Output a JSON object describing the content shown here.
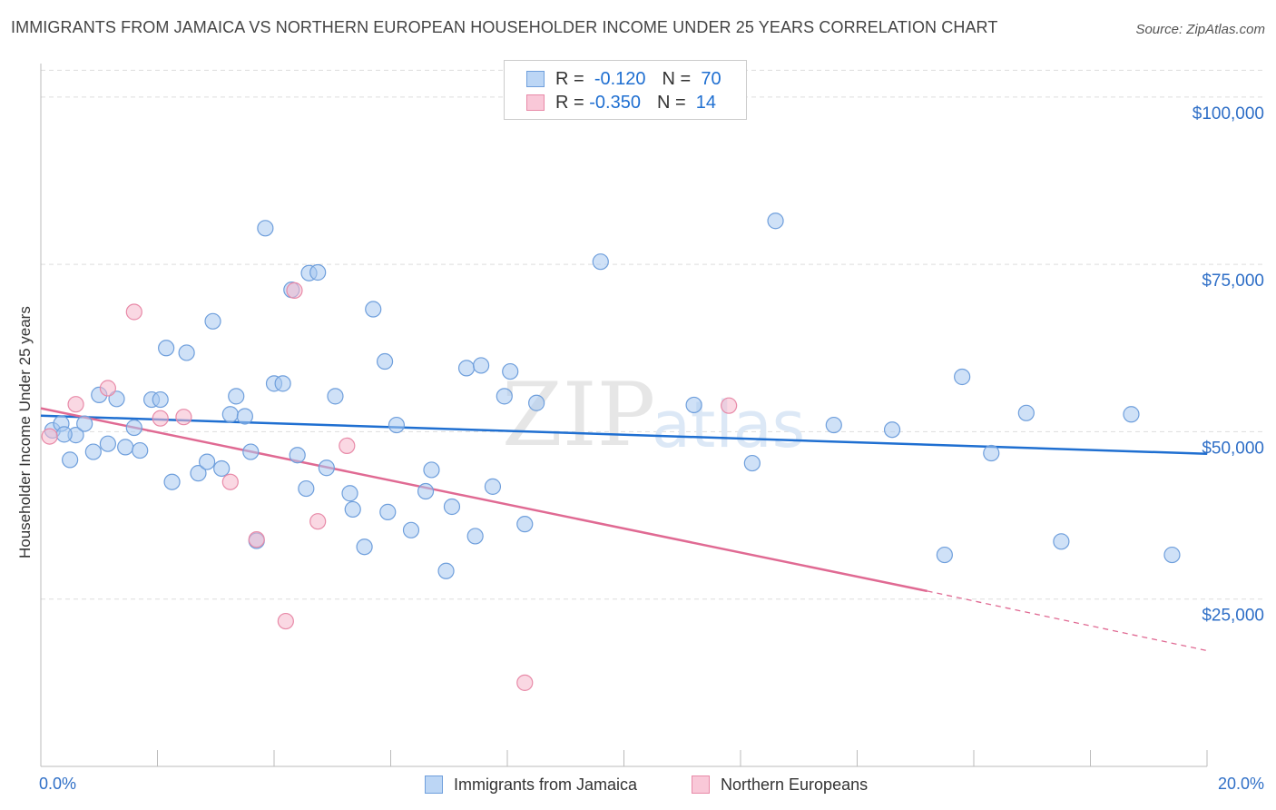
{
  "title": "IMMIGRANTS FROM JAMAICA VS NORTHERN EUROPEAN HOUSEHOLDER INCOME UNDER 25 YEARS CORRELATION CHART",
  "source": "Source: ZipAtlas.com",
  "watermark": {
    "zip": "ZIP",
    "atlas": "atlas"
  },
  "legend": {
    "rows": [
      {
        "r_label": "R =",
        "r_value": "-0.120",
        "n_label": "N =",
        "n_value": "70"
      },
      {
        "r_label": "R =",
        "r_value": "-0.350",
        "n_label": "N =",
        "n_value": "14"
      }
    ]
  },
  "colors": {
    "blue_fill": "#a8c8f0",
    "blue_stroke": "#6f9fdc",
    "blue_line": "#1f6fd1",
    "pink_fill": "#f6b8cc",
    "pink_stroke": "#e88aa8",
    "pink_line": "#e06a93",
    "axis_text": "#2f6fc7",
    "grid": "#dddddd"
  },
  "chart_data": {
    "type": "scatter",
    "title": "IMMIGRANTS FROM JAMAICA VS NORTHERN EUROPEAN HOUSEHOLDER INCOME UNDER 25 YEARS CORRELATION CHART",
    "xlabel": "",
    "ylabel": "Householder Income Under 25 years",
    "xlim": [
      0,
      20
    ],
    "ylim": [
      0,
      105000
    ],
    "x_tick_labels": [
      "0.0%",
      "20.0%"
    ],
    "y_ticks": [
      25000,
      50000,
      75000,
      100000
    ],
    "y_tick_labels": [
      "$25,000",
      "$50,000",
      "$75,000",
      "$100,000"
    ],
    "grid": true,
    "legend_position": "bottom",
    "series": [
      {
        "name": "Immigrants from Jamaica",
        "color": "#a8c8f0",
        "trend": {
          "x": [
            0,
            20
          ],
          "y": [
            52400,
            46700
          ]
        },
        "points": [
          [
            0.2,
            50200
          ],
          [
            0.35,
            51200
          ],
          [
            0.5,
            45800
          ],
          [
            0.6,
            49500
          ],
          [
            0.75,
            51200
          ],
          [
            0.9,
            47000
          ],
          [
            1.0,
            55500
          ],
          [
            1.15,
            48200
          ],
          [
            1.3,
            54900
          ],
          [
            1.45,
            47700
          ],
          [
            1.6,
            50600
          ],
          [
            1.7,
            47200
          ],
          [
            1.9,
            54800
          ],
          [
            2.05,
            54800
          ],
          [
            2.15,
            62500
          ],
          [
            2.25,
            42500
          ],
          [
            2.5,
            61800
          ],
          [
            2.7,
            43800
          ],
          [
            2.85,
            45500
          ],
          [
            2.95,
            66500
          ],
          [
            3.1,
            44500
          ],
          [
            3.25,
            52600
          ],
          [
            3.35,
            55300
          ],
          [
            3.5,
            52300
          ],
          [
            3.6,
            47000
          ],
          [
            3.7,
            33700
          ],
          [
            3.85,
            80400
          ],
          [
            4.0,
            57200
          ],
          [
            4.15,
            57200
          ],
          [
            4.3,
            71200
          ],
          [
            4.4,
            46500
          ],
          [
            4.55,
            41500
          ],
          [
            4.6,
            73700
          ],
          [
            4.75,
            73800
          ],
          [
            4.9,
            44600
          ],
          [
            5.05,
            55300
          ],
          [
            5.3,
            40800
          ],
          [
            5.35,
            38400
          ],
          [
            5.55,
            32800
          ],
          [
            5.7,
            68300
          ],
          [
            5.9,
            60500
          ],
          [
            5.95,
            38000
          ],
          [
            6.1,
            51000
          ],
          [
            6.35,
            35300
          ],
          [
            6.6,
            41100
          ],
          [
            6.7,
            44300
          ],
          [
            6.95,
            29200
          ],
          [
            7.05,
            38800
          ],
          [
            7.3,
            59500
          ],
          [
            7.45,
            34400
          ],
          [
            7.55,
            59900
          ],
          [
            7.75,
            41800
          ],
          [
            7.95,
            55300
          ],
          [
            8.05,
            59000
          ],
          [
            8.3,
            36200
          ],
          [
            8.5,
            54300
          ],
          [
            9.6,
            75400
          ],
          [
            11.2,
            54000
          ],
          [
            12.2,
            45300
          ],
          [
            12.6,
            81500
          ],
          [
            13.6,
            51000
          ],
          [
            14.6,
            50300
          ],
          [
            15.5,
            31600
          ],
          [
            15.8,
            58200
          ],
          [
            16.3,
            46800
          ],
          [
            16.9,
            52800
          ],
          [
            17.5,
            33600
          ],
          [
            18.7,
            52600
          ],
          [
            19.4,
            31600
          ],
          [
            0.4,
            49600
          ]
        ]
      },
      {
        "name": "Northern Europeans",
        "color": "#f6b8cc",
        "trend": {
          "x": [
            0,
            15.2
          ],
          "y": [
            53500,
            26200
          ],
          "dashed_to": {
            "x": 20,
            "y": 17300
          }
        },
        "points": [
          [
            0.15,
            49300
          ],
          [
            0.6,
            54100
          ],
          [
            1.15,
            56500
          ],
          [
            1.6,
            67900
          ],
          [
            2.05,
            52000
          ],
          [
            2.45,
            52200
          ],
          [
            3.25,
            42500
          ],
          [
            3.7,
            33900
          ],
          [
            4.2,
            21700
          ],
          [
            4.35,
            71100
          ],
          [
            4.75,
            36600
          ],
          [
            5.25,
            47900
          ],
          [
            8.3,
            12500
          ],
          [
            11.8,
            53900
          ]
        ]
      }
    ]
  }
}
